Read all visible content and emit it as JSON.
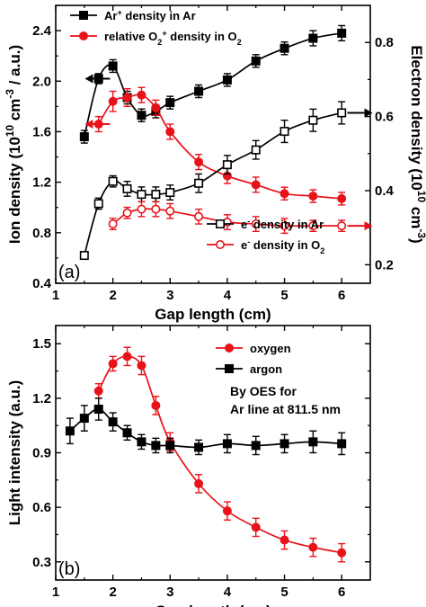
{
  "chart_data": [
    {
      "type": "line",
      "panel_label": "(a)",
      "xlabel": "Gap length (cm)",
      "xlim": [
        1,
        6.5
      ],
      "xticks": [
        1,
        2,
        3,
        4,
        5,
        6
      ],
      "y_left": {
        "label_parts": [
          "Ion density (10",
          "10",
          " cm",
          "-3",
          " / a.u.)"
        ],
        "lim": [
          0.4,
          2.6
        ],
        "ticks": [
          "0.4",
          "0.8",
          "1.2",
          "1.6",
          "2.0",
          "2.4"
        ]
      },
      "y_right": {
        "label_parts": [
          "Electron density (10",
          "10",
          " cm",
          "-3",
          ")"
        ],
        "lim": [
          0.15,
          0.9
        ],
        "ticks": [
          "0.2",
          "0.4",
          "0.6",
          "0.8"
        ]
      },
      "series": [
        {
          "legend_parts": [
            "Ar",
            "+",
            " density in Ar",
            ""
          ],
          "axis": "left",
          "color": "#000000",
          "marker": "filled-square",
          "x": [
            1.5,
            1.75,
            2.0,
            2.25,
            2.5,
            2.75,
            3.0,
            3.5,
            4.0,
            4.5,
            5.0,
            5.5,
            6.0
          ],
          "y": [
            1.56,
            2.02,
            2.12,
            1.87,
            1.73,
            1.76,
            1.83,
            1.92,
            2.01,
            2.16,
            2.26,
            2.34,
            2.38
          ],
          "err": [
            0.05,
            0.04,
            0.05,
            0.05,
            0.05,
            0.05,
            0.05,
            0.05,
            0.05,
            0.05,
            0.05,
            0.06,
            0.06
          ]
        },
        {
          "legend_parts": [
            "relative O",
            "2",
            "+",
            " density in O",
            "2"
          ],
          "axis": "left",
          "color": "#e8131a",
          "marker": "filled-circle",
          "x": [
            1.75,
            2.0,
            2.25,
            2.5,
            2.75,
            3.0,
            3.5,
            4.0,
            4.5,
            5.0,
            5.5,
            6.0
          ],
          "y": [
            1.66,
            1.84,
            1.87,
            1.89,
            1.79,
            1.6,
            1.36,
            1.25,
            1.18,
            1.11,
            1.09,
            1.07
          ],
          "err": [
            0.06,
            0.08,
            0.07,
            0.06,
            0.06,
            0.06,
            0.06,
            0.06,
            0.06,
            0.05,
            0.05,
            0.05
          ]
        },
        {
          "legend_parts": [
            "e",
            "-",
            " density in Ar",
            ""
          ],
          "axis": "right",
          "color": "#000000",
          "marker": "open-square",
          "x": [
            1.5,
            1.75,
            2.0,
            2.25,
            2.5,
            2.75,
            3.0,
            3.5,
            4.0,
            4.5,
            5.0,
            5.5,
            6.0
          ],
          "y": [
            0.225,
            0.365,
            0.425,
            0.405,
            0.39,
            0.39,
            0.395,
            0.42,
            0.47,
            0.51,
            0.56,
            0.59,
            0.61
          ],
          "err": [
            0.01,
            0.015,
            0.015,
            0.02,
            0.02,
            0.02,
            0.02,
            0.025,
            0.025,
            0.025,
            0.03,
            0.03,
            0.03
          ]
        },
        {
          "legend_parts": [
            "e",
            "-",
            " density in O",
            "2"
          ],
          "axis": "right",
          "color": "#e8131a",
          "marker": "open-circle",
          "x": [
            2.0,
            2.25,
            2.5,
            2.75,
            3.0,
            3.5,
            4.0,
            4.5,
            5.0,
            5.5,
            6.0
          ],
          "y": [
            0.31,
            0.34,
            0.35,
            0.35,
            0.345,
            0.33,
            0.315,
            0.31,
            0.305,
            0.305,
            0.305
          ],
          "err": [
            0.015,
            0.015,
            0.02,
            0.02,
            0.02,
            0.02,
            0.02,
            0.02,
            0.02,
            0.015,
            0.015
          ]
        }
      ],
      "arrows": [
        {
          "x": 1.95,
          "y": 2.02,
          "axis": "left",
          "direction": "left",
          "color": "#000000"
        },
        {
          "x": 1.95,
          "y": 1.66,
          "axis": "left",
          "direction": "left",
          "color": "#e8131a"
        },
        {
          "x": 6.1,
          "y": 0.61,
          "axis": "right",
          "direction": "right",
          "color": "#000000"
        },
        {
          "x": 6.1,
          "y": 0.305,
          "axis": "right",
          "direction": "right",
          "color": "#e8131a"
        }
      ]
    },
    {
      "type": "line",
      "panel_label": "(b)",
      "xlabel": "Gap length (cm)",
      "xlim": [
        1,
        6.5
      ],
      "xticks": [
        1,
        2,
        3,
        4,
        5,
        6
      ],
      "y_left": {
        "label_parts": [
          "Light intensity (a.u.)",
          "",
          "",
          "",
          ""
        ],
        "lim": [
          0.2,
          1.6
        ],
        "ticks": [
          "0.3",
          "0.6",
          "0.9",
          "1.2",
          "1.5"
        ]
      },
      "note": [
        "By OES for",
        "Ar line at 811.5 nm"
      ],
      "series": [
        {
          "legend_parts": [
            "oxygen",
            "",
            "",
            "",
            ""
          ],
          "axis": "left",
          "color": "#e8131a",
          "marker": "filled-circle",
          "x": [
            1.75,
            2.0,
            2.25,
            2.5,
            2.75,
            3.0,
            3.5,
            4.0,
            4.5,
            5.0,
            5.5,
            6.0
          ],
          "y": [
            1.24,
            1.39,
            1.43,
            1.38,
            1.16,
            0.96,
            0.73,
            0.58,
            0.49,
            0.42,
            0.38,
            0.35
          ],
          "err": [
            0.04,
            0.04,
            0.05,
            0.05,
            0.05,
            0.05,
            0.05,
            0.05,
            0.05,
            0.05,
            0.05,
            0.05
          ]
        },
        {
          "legend_parts": [
            "argon",
            "",
            "",
            "",
            ""
          ],
          "axis": "left",
          "color": "#000000",
          "marker": "filled-square",
          "x": [
            1.25,
            1.5,
            1.75,
            2.0,
            2.25,
            2.5,
            2.75,
            3.0,
            3.5,
            4.0,
            4.5,
            5.0,
            5.5,
            6.0
          ],
          "y": [
            1.02,
            1.09,
            1.14,
            1.07,
            1.01,
            0.96,
            0.94,
            0.94,
            0.93,
            0.95,
            0.94,
            0.95,
            0.96,
            0.95
          ],
          "err": [
            0.07,
            0.07,
            0.06,
            0.05,
            0.04,
            0.04,
            0.04,
            0.04,
            0.04,
            0.05,
            0.05,
            0.05,
            0.06,
            0.06
          ]
        }
      ]
    }
  ]
}
